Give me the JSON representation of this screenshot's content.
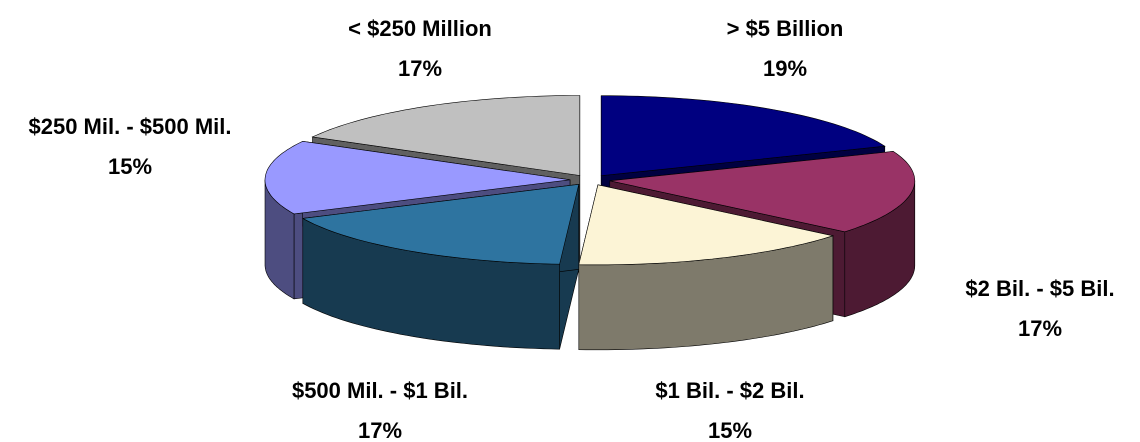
{
  "chart_data": {
    "type": "pie",
    "categories": [
      "> $5 Billion",
      "$2 Bil. - $5 Bil.",
      "$1 Bil. - $2 Bil.",
      "$500 Mil. - $1 Bil.",
      "$250 Mil. - $500 Mil.",
      "< $250 Million"
    ],
    "values": [
      19,
      17,
      15,
      17,
      15,
      17
    ],
    "value_labels": [
      "19%",
      "17%",
      "15%",
      "17%",
      "15%",
      "17%"
    ],
    "colors": [
      "#000080",
      "#993366",
      "#fcf4d6",
      "#2e74a0",
      "#9999ff",
      "#c0c0c0"
    ]
  }
}
